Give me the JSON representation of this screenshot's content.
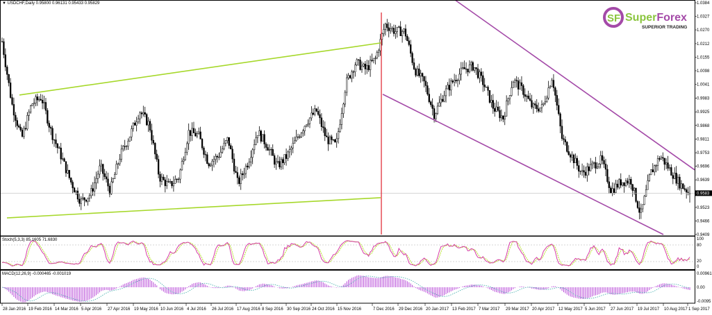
{
  "header": {
    "symbol_line": "USDCHF,Daily  0.95800 0.96131 0.95433 0.95829"
  },
  "logo": {
    "monogram": "SF",
    "brand_part1": "Super",
    "brand_part2": "Forex",
    "tagline": "SUPERIOR TRADING"
  },
  "colors": {
    "candle": "#000000",
    "green_line": "#a6d82a",
    "purple_line": "#a44aa8",
    "red_line": "#e0202a",
    "stoch_main": "#d63aa6",
    "stoch_signal": "#b6e02a",
    "macd_hist": "#b84ad8",
    "macd_signal": "#3aaaa8"
  },
  "chart_data": {
    "type": "candlestick",
    "symbol": "USDCHF",
    "timeframe": "Daily",
    "date_range": [
      "28 Jan 2016",
      "1 Sep 2017"
    ],
    "last_ohlc": {
      "open": 0.958,
      "high": 0.96131,
      "low": 0.95433,
      "close": 0.95829
    },
    "approx_closes": [
      1.0221,
      0.9958,
      0.9812,
      0.9958,
      0.9987,
      0.9841,
      0.9739,
      0.9631,
      0.9549,
      0.9578,
      0.9695,
      0.9593,
      0.9739,
      0.9826,
      0.9929,
      0.987,
      0.9651,
      0.9613,
      0.9651,
      0.9841,
      0.9826,
      0.971,
      0.9739,
      0.9812,
      0.9622,
      0.971,
      0.9841,
      0.9783,
      0.9695,
      0.9739,
      0.9812,
      0.9885,
      0.9929,
      0.9812,
      0.9783,
      1.0045,
      1.0133,
      1.0104,
      1.0148,
      1.0293,
      1.0264,
      1.0264,
      1.0104,
      1.0045,
      0.9914,
      1.0002,
      1.006,
      1.0104,
      1.0118,
      1.0045,
      0.9943,
      0.9899,
      1.006,
      1.0016,
      0.9943,
      0.9943,
      1.0075,
      0.9812,
      0.9739,
      0.9666,
      0.9695,
      0.9724,
      0.9593,
      0.9631,
      0.9637,
      0.9491,
      0.9666,
      0.9739,
      0.968,
      0.9622,
      0.9583
    ],
    "price_axis": {
      "ticks": [
        "1.0384",
        "1.0327",
        "1.0270",
        "1.0212",
        "1.0155",
        "1.0098",
        "1.0041",
        "0.9983",
        "0.9925",
        "0.9868",
        "0.9811",
        "0.9753",
        "0.9696",
        "0.9639",
        "0.9523",
        "0.9466",
        "0.9409"
      ],
      "current_price_label": "0.9583",
      "range": [
        0.9409,
        1.0384
      ]
    },
    "date_axis": {
      "ticks": [
        "28 Jan 2016",
        "19 Feb 2016",
        "14 Mar 2016",
        "5 Apr 2016",
        "27 Apr 2016",
        "19 May 2016",
        "10 Jun 2016",
        "4 Jul 2016",
        "26 Jul 2016",
        "17 Aug 2016",
        "8 Sep 2016",
        "30 Sep 2016",
        "24 Oct 2016",
        "15 Nov 2016",
        "7 Dec 2016",
        "29 Dec 2016",
        "20 Jan 2017",
        "13 Feb 2017",
        "7 Mar 2017",
        "29 Mar 2017",
        "20 Apr 2017",
        "12 May 2017",
        "5 Jun 2017",
        "27 Jun 2017",
        "19 Jul 2017",
        "10 Aug 2017",
        "1 Sep 2017"
      ]
    },
    "trendlines": [
      {
        "color": "green",
        "prices": [
          0.9996,
          1.0215
        ]
      },
      {
        "color": "green",
        "prices": [
          0.9479,
          0.9564
        ]
      },
      {
        "color": "purple",
        "prices": [
          1.0396,
          0.9681
        ]
      },
      {
        "color": "purple",
        "prices": [
          0.9999,
          0.9409
        ]
      }
    ],
    "vertical_marker": {
      "color": "red",
      "date": "7 Dec 2016"
    },
    "stochastic": {
      "label": "Stoch(5,3,3) 85.1605 71.6830",
      "levels": [
        "100",
        "80",
        "20",
        "0"
      ]
    },
    "macd": {
      "label": "MACD(12,26,9) -0.000465 -0.001019",
      "axis": [
        "0.00961",
        "0.00",
        "-0.0095"
      ]
    }
  }
}
